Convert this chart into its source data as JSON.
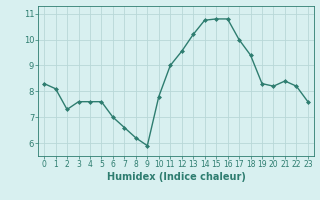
{
  "x": [
    0,
    1,
    2,
    3,
    4,
    5,
    6,
    7,
    8,
    9,
    10,
    11,
    12,
    13,
    14,
    15,
    16,
    17,
    18,
    19,
    20,
    21,
    22,
    23
  ],
  "y": [
    8.3,
    8.1,
    7.3,
    7.6,
    7.6,
    7.6,
    7.0,
    6.6,
    6.2,
    5.9,
    7.8,
    9.0,
    9.55,
    10.2,
    10.75,
    10.8,
    10.8,
    10.0,
    9.4,
    8.3,
    8.2,
    8.4,
    8.2,
    7.6
  ],
  "xlim": [
    -0.5,
    23.5
  ],
  "ylim": [
    5.5,
    11.3
  ],
  "yticks": [
    6,
    7,
    8,
    9,
    10,
    11
  ],
  "xticks": [
    0,
    1,
    2,
    3,
    4,
    5,
    6,
    7,
    8,
    9,
    10,
    11,
    12,
    13,
    14,
    15,
    16,
    17,
    18,
    19,
    20,
    21,
    22,
    23
  ],
  "xlabel": "Humidex (Indice chaleur)",
  "line_color": "#2E7D70",
  "marker": "D",
  "marker_size": 2.0,
  "bg_color": "#D8F0F0",
  "grid_color": "#B8D8D8",
  "tick_color": "#2E7D70",
  "xlabel_fontsize": 7,
  "ytick_fontsize": 6,
  "xtick_fontsize": 5.5,
  "linewidth": 1.0
}
